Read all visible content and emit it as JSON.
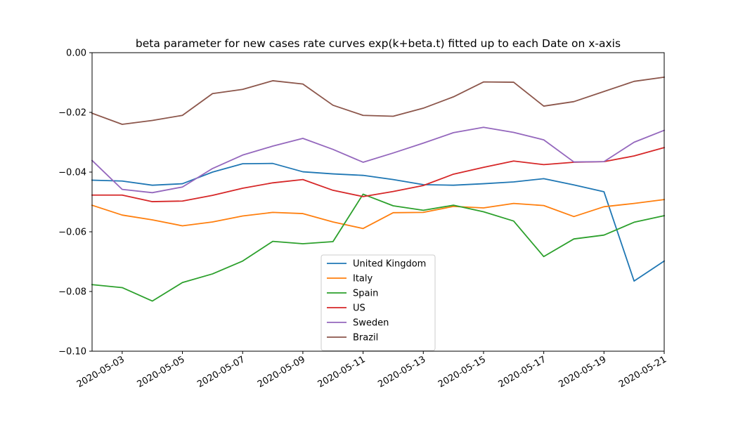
{
  "chart_data": {
    "type": "line",
    "title": "beta parameter for new cases rate curves exp(k+beta.t) fitted up to each Date on x-axis",
    "xlabel": "",
    "ylabel": "",
    "ylim": [
      -0.1,
      0.0
    ],
    "yticks": [
      -0.1,
      -0.08,
      -0.06,
      -0.04,
      -0.02,
      0.0
    ],
    "ytick_labels": [
      "−0.10",
      "−0.08",
      "−0.06",
      "−0.04",
      "−0.02",
      "0.00"
    ],
    "xlim": [
      "2020-05-02",
      "2020-05-21"
    ],
    "xtick_labels": [
      "2020-05-03",
      "2020-05-05",
      "2020-05-07",
      "2020-05-09",
      "2020-05-11",
      "2020-05-13",
      "2020-05-15",
      "2020-05-17",
      "2020-05-19",
      "2020-05-21"
    ],
    "grid": false,
    "legend_position": "lower-center",
    "x": [
      "2020-05-02",
      "2020-05-03",
      "2020-05-04",
      "2020-05-05",
      "2020-05-06",
      "2020-05-07",
      "2020-05-08",
      "2020-05-09",
      "2020-05-10",
      "2020-05-11",
      "2020-05-12",
      "2020-05-13",
      "2020-05-14",
      "2020-05-15",
      "2020-05-16",
      "2020-05-17",
      "2020-05-18",
      "2020-05-19",
      "2020-05-20",
      "2020-05-21"
    ],
    "series": [
      {
        "name": "United Kingdom",
        "color": "#1f77b4",
        "values": [
          -0.0427,
          -0.043,
          -0.0444,
          -0.0439,
          -0.04,
          -0.0372,
          -0.0371,
          -0.0399,
          -0.0406,
          -0.0411,
          -0.0425,
          -0.0442,
          -0.0444,
          -0.0439,
          -0.0433,
          -0.0422,
          -0.0443,
          -0.0466,
          -0.0765,
          -0.0698
        ]
      },
      {
        "name": "Italy",
        "color": "#ff7f0e",
        "values": [
          -0.0511,
          -0.0544,
          -0.056,
          -0.058,
          -0.0567,
          -0.0547,
          -0.0535,
          -0.0539,
          -0.0567,
          -0.0589,
          -0.0536,
          -0.0535,
          -0.0515,
          -0.052,
          -0.0505,
          -0.0512,
          -0.0549,
          -0.0516,
          -0.0505,
          -0.0492
        ]
      },
      {
        "name": "Spain",
        "color": "#2ca02c",
        "values": [
          -0.0777,
          -0.0787,
          -0.0832,
          -0.077,
          -0.0741,
          -0.0698,
          -0.0632,
          -0.064,
          -0.0633,
          -0.0474,
          -0.0513,
          -0.0528,
          -0.0511,
          -0.0533,
          -0.0564,
          -0.0683,
          -0.0624,
          -0.0611,
          -0.0568,
          -0.0546
        ]
      },
      {
        "name": "US",
        "color": "#d62728",
        "values": [
          -0.0477,
          -0.0477,
          -0.0499,
          -0.0497,
          -0.0478,
          -0.0454,
          -0.0436,
          -0.0425,
          -0.0461,
          -0.0482,
          -0.0465,
          -0.0445,
          -0.0407,
          -0.0384,
          -0.0363,
          -0.0375,
          -0.0367,
          -0.0365,
          -0.0346,
          -0.0318
        ]
      },
      {
        "name": "Sweden",
        "color": "#9467bd",
        "values": [
          -0.0361,
          -0.0458,
          -0.0469,
          -0.045,
          -0.0388,
          -0.0343,
          -0.0313,
          -0.0287,
          -0.0324,
          -0.0367,
          -0.0336,
          -0.0303,
          -0.0268,
          -0.025,
          -0.0267,
          -0.0292,
          -0.0366,
          -0.0365,
          -0.03,
          -0.026
        ]
      },
      {
        "name": "Brazil",
        "color": "#8c564b",
        "values": [
          -0.0203,
          -0.024,
          -0.0227,
          -0.021,
          -0.0137,
          -0.0123,
          -0.0094,
          -0.0105,
          -0.0176,
          -0.021,
          -0.0213,
          -0.0186,
          -0.0148,
          -0.0098,
          -0.0099,
          -0.0179,
          -0.0164,
          -0.013,
          -0.0096,
          -0.0082
        ]
      }
    ]
  }
}
